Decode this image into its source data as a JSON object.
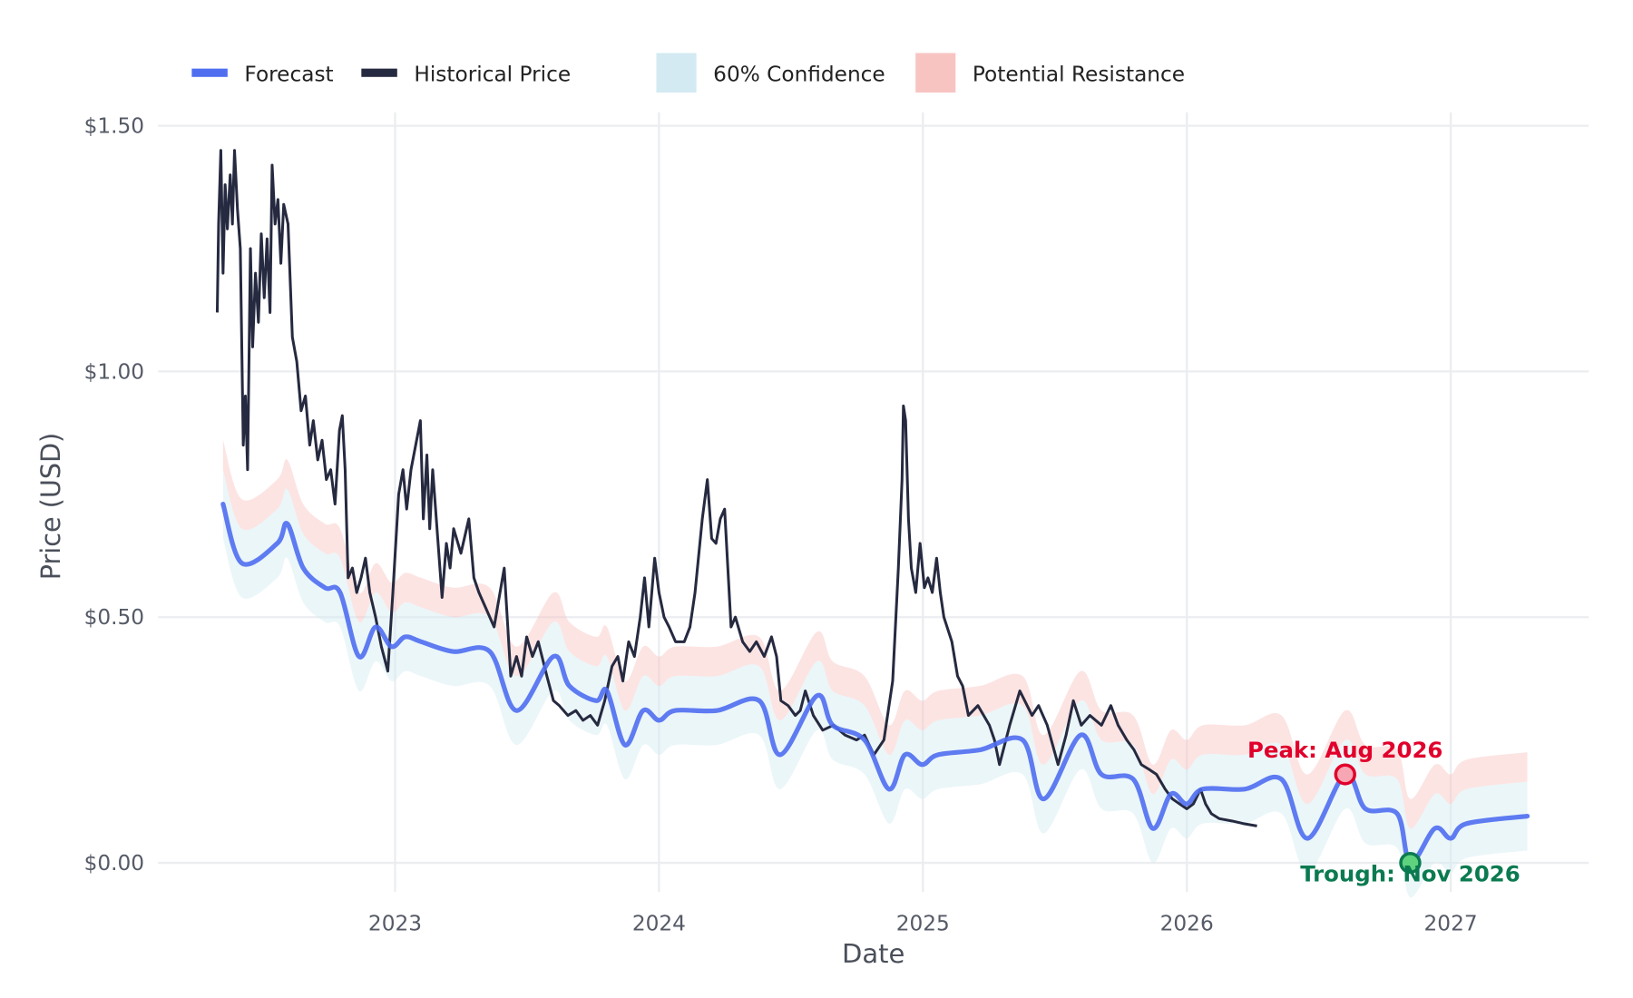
{
  "chart_data": {
    "type": "line",
    "title": "",
    "xlabel": "Date",
    "ylabel": "Price (USD)",
    "ylim": [
      -0.07,
      1.55
    ],
    "xlim": [
      "2022-02-01",
      "2027-07-15"
    ],
    "grid": true,
    "legend_placement": "top-left",
    "x_ticks": [
      "2023",
      "2024",
      "2025",
      "2026",
      "2027"
    ],
    "y_ticks": [
      {
        "value": 0,
        "label": "$0.00"
      },
      {
        "value": 0.5,
        "label": "$0.50"
      },
      {
        "value": 1.0,
        "label": "$1.00"
      },
      {
        "value": 1.5,
        "label": "$1.50"
      }
    ],
    "colors": {
      "forecast": "#4f6ef0",
      "historical": "#262a40",
      "confidence": "#d3eaf2",
      "resistance": "#f8c4c2",
      "peak": "#e0002b",
      "trough": "#0b7a50",
      "grid": "#ebedf0"
    },
    "legend": [
      {
        "key": "forecast",
        "label": "Forecast",
        "kind": "line"
      },
      {
        "key": "historical",
        "label": "Historical Price",
        "kind": "line"
      },
      {
        "key": "confidence",
        "label": "60% Confidence",
        "kind": "patch"
      },
      {
        "key": "resistance",
        "label": "Potential Resistance",
        "kind": "patch"
      }
    ],
    "bands": {
      "confidence_halfwidth": 0.07,
      "resistance_from": 0.07,
      "resistance_to": 0.13
    },
    "series": [
      {
        "name": "Historical Price",
        "points": [
          [
            "2022-04-30",
            1.12
          ],
          [
            "2022-05-02",
            1.3
          ],
          [
            "2022-05-05",
            1.45
          ],
          [
            "2022-05-08",
            1.2
          ],
          [
            "2022-05-11",
            1.38
          ],
          [
            "2022-05-14",
            1.29
          ],
          [
            "2022-05-18",
            1.4
          ],
          [
            "2022-05-21",
            1.3
          ],
          [
            "2022-05-24",
            1.45
          ],
          [
            "2022-05-28",
            1.33
          ],
          [
            "2022-06-01",
            1.25
          ],
          [
            "2022-06-05",
            0.85
          ],
          [
            "2022-06-08",
            0.95
          ],
          [
            "2022-06-11",
            0.8
          ],
          [
            "2022-06-15",
            1.25
          ],
          [
            "2022-06-18",
            1.05
          ],
          [
            "2022-06-22",
            1.2
          ],
          [
            "2022-06-26",
            1.1
          ],
          [
            "2022-06-30",
            1.28
          ],
          [
            "2022-07-04",
            1.15
          ],
          [
            "2022-07-08",
            1.27
          ],
          [
            "2022-07-12",
            1.12
          ],
          [
            "2022-07-15",
            1.42
          ],
          [
            "2022-07-19",
            1.3
          ],
          [
            "2022-07-23",
            1.35
          ],
          [
            "2022-07-27",
            1.22
          ],
          [
            "2022-07-31",
            1.34
          ],
          [
            "2022-08-06",
            1.3
          ],
          [
            "2022-08-12",
            1.07
          ],
          [
            "2022-08-18",
            1.02
          ],
          [
            "2022-08-24",
            0.92
          ],
          [
            "2022-08-30",
            0.95
          ],
          [
            "2022-09-05",
            0.85
          ],
          [
            "2022-09-10",
            0.9
          ],
          [
            "2022-09-16",
            0.82
          ],
          [
            "2022-09-22",
            0.86
          ],
          [
            "2022-09-28",
            0.78
          ],
          [
            "2022-10-04",
            0.8
          ],
          [
            "2022-10-10",
            0.73
          ],
          [
            "2022-10-16",
            0.88
          ],
          [
            "2022-10-20",
            0.91
          ],
          [
            "2022-10-24",
            0.8
          ],
          [
            "2022-10-28",
            0.58
          ],
          [
            "2022-11-03",
            0.6
          ],
          [
            "2022-11-09",
            0.55
          ],
          [
            "2022-11-15",
            0.58
          ],
          [
            "2022-11-21",
            0.62
          ],
          [
            "2022-11-27",
            0.55
          ],
          [
            "2022-12-05",
            0.5
          ],
          [
            "2022-12-13",
            0.44
          ],
          [
            "2022-12-22",
            0.39
          ],
          [
            "2022-12-29",
            0.55
          ],
          [
            "2023-01-06",
            0.75
          ],
          [
            "2023-01-12",
            0.8
          ],
          [
            "2023-01-17",
            0.72
          ],
          [
            "2023-01-23",
            0.8
          ],
          [
            "2023-02-05",
            0.9
          ],
          [
            "2023-02-09",
            0.7
          ],
          [
            "2023-02-14",
            0.83
          ],
          [
            "2023-02-18",
            0.68
          ],
          [
            "2023-02-22",
            0.8
          ],
          [
            "2023-03-07",
            0.54
          ],
          [
            "2023-03-13",
            0.65
          ],
          [
            "2023-03-18",
            0.6
          ],
          [
            "2023-03-23",
            0.68
          ],
          [
            "2023-04-02",
            0.63
          ],
          [
            "2023-04-13",
            0.7
          ],
          [
            "2023-04-20",
            0.58
          ],
          [
            "2023-04-27",
            0.55
          ],
          [
            "2023-05-06",
            0.52
          ],
          [
            "2023-05-18",
            0.48
          ],
          [
            "2023-06-01",
            0.6
          ],
          [
            "2023-06-10",
            0.38
          ],
          [
            "2023-06-18",
            0.42
          ],
          [
            "2023-06-25",
            0.38
          ],
          [
            "2023-07-02",
            0.46
          ],
          [
            "2023-07-10",
            0.42
          ],
          [
            "2023-07-18",
            0.45
          ],
          [
            "2023-07-30",
            0.38
          ],
          [
            "2023-08-08",
            0.33
          ],
          [
            "2023-08-16",
            0.32
          ],
          [
            "2023-08-28",
            0.3
          ],
          [
            "2023-09-08",
            0.31
          ],
          [
            "2023-09-18",
            0.29
          ],
          [
            "2023-09-28",
            0.3
          ],
          [
            "2023-10-08",
            0.28
          ],
          [
            "2023-10-18",
            0.33
          ],
          [
            "2023-10-28",
            0.4
          ],
          [
            "2023-11-05",
            0.42
          ],
          [
            "2023-11-12",
            0.37
          ],
          [
            "2023-11-20",
            0.45
          ],
          [
            "2023-11-28",
            0.42
          ],
          [
            "2023-12-06",
            0.5
          ],
          [
            "2023-12-12",
            0.58
          ],
          [
            "2023-12-18",
            0.48
          ],
          [
            "2023-12-26",
            0.62
          ],
          [
            "2024-01-01",
            0.55
          ],
          [
            "2024-01-08",
            0.5
          ],
          [
            "2024-01-15",
            0.48
          ],
          [
            "2024-01-24",
            0.45
          ],
          [
            "2024-02-05",
            0.45
          ],
          [
            "2024-02-13",
            0.48
          ],
          [
            "2024-02-20",
            0.55
          ],
          [
            "2024-03-01",
            0.7
          ],
          [
            "2024-03-08",
            0.78
          ],
          [
            "2024-03-14",
            0.66
          ],
          [
            "2024-03-20",
            0.65
          ],
          [
            "2024-03-26",
            0.7
          ],
          [
            "2024-04-01",
            0.72
          ],
          [
            "2024-04-10",
            0.48
          ],
          [
            "2024-04-16",
            0.5
          ],
          [
            "2024-04-26",
            0.45
          ],
          [
            "2024-05-06",
            0.43
          ],
          [
            "2024-05-15",
            0.45
          ],
          [
            "2024-05-26",
            0.42
          ],
          [
            "2024-06-05",
            0.46
          ],
          [
            "2024-06-12",
            0.42
          ],
          [
            "2024-06-18",
            0.33
          ],
          [
            "2024-06-28",
            0.32
          ],
          [
            "2024-07-08",
            0.3
          ],
          [
            "2024-07-15",
            0.31
          ],
          [
            "2024-07-22",
            0.35
          ],
          [
            "2024-08-02",
            0.3
          ],
          [
            "2024-08-15",
            0.27
          ],
          [
            "2024-08-30",
            0.28
          ],
          [
            "2024-09-15",
            0.26
          ],
          [
            "2024-10-01",
            0.25
          ],
          [
            "2024-10-12",
            0.26
          ],
          [
            "2024-10-25",
            0.22
          ],
          [
            "2024-11-08",
            0.25
          ],
          [
            "2024-11-20",
            0.37
          ],
          [
            "2024-11-28",
            0.6
          ],
          [
            "2024-12-03",
            0.78
          ],
          [
            "2024-12-05",
            0.93
          ],
          [
            "2024-12-08",
            0.9
          ],
          [
            "2024-12-12",
            0.7
          ],
          [
            "2024-12-16",
            0.6
          ],
          [
            "2024-12-22",
            0.55
          ],
          [
            "2024-12-28",
            0.65
          ],
          [
            "2025-01-03",
            0.56
          ],
          [
            "2025-01-08",
            0.58
          ],
          [
            "2025-01-14",
            0.55
          ],
          [
            "2025-01-20",
            0.62
          ],
          [
            "2025-01-25",
            0.55
          ],
          [
            "2025-01-30",
            0.5
          ],
          [
            "2025-02-10",
            0.45
          ],
          [
            "2025-02-18",
            0.38
          ],
          [
            "2025-02-25",
            0.36
          ],
          [
            "2025-03-05",
            0.3
          ],
          [
            "2025-03-18",
            0.32
          ],
          [
            "2025-04-03",
            0.28
          ],
          [
            "2025-04-10",
            0.25
          ],
          [
            "2025-04-17",
            0.2
          ],
          [
            "2025-05-01",
            0.28
          ],
          [
            "2025-05-15",
            0.35
          ],
          [
            "2025-06-01",
            0.3
          ],
          [
            "2025-06-10",
            0.32
          ],
          [
            "2025-06-22",
            0.28
          ],
          [
            "2025-07-07",
            0.2
          ],
          [
            "2025-07-18",
            0.26
          ],
          [
            "2025-07-28",
            0.33
          ],
          [
            "2025-08-08",
            0.28
          ],
          [
            "2025-08-20",
            0.3
          ],
          [
            "2025-09-05",
            0.28
          ],
          [
            "2025-09-18",
            0.32
          ],
          [
            "2025-09-28",
            0.28
          ],
          [
            "2025-10-10",
            0.25
          ],
          [
            "2025-10-20",
            0.23
          ],
          [
            "2025-10-30",
            0.2
          ],
          [
            "2025-11-10",
            0.19
          ],
          [
            "2025-11-20",
            0.18
          ],
          [
            "2025-12-02",
            0.15
          ],
          [
            "2025-12-12",
            0.13
          ],
          [
            "2025-12-22",
            0.12
          ],
          [
            "2026-01-01",
            0.11
          ],
          [
            "2026-01-10",
            0.12
          ],
          [
            "2026-01-20",
            0.15
          ],
          [
            "2026-01-27",
            0.12
          ],
          [
            "2026-02-04",
            0.1
          ],
          [
            "2026-02-15",
            0.09
          ],
          [
            "2026-03-05",
            0.085
          ],
          [
            "2026-03-20",
            0.08
          ],
          [
            "2026-04-08",
            0.075
          ]
        ]
      },
      {
        "name": "Forecast",
        "points": [
          [
            "2022-05-08",
            0.73
          ],
          [
            "2022-06-03",
            0.61
          ],
          [
            "2022-07-22",
            0.65
          ],
          [
            "2022-08-05",
            0.69
          ],
          [
            "2022-08-27",
            0.6
          ],
          [
            "2022-09-26",
            0.56
          ],
          [
            "2022-10-17",
            0.55
          ],
          [
            "2022-11-12",
            0.42
          ],
          [
            "2022-12-05",
            0.48
          ],
          [
            "2022-12-27",
            0.44
          ],
          [
            "2023-01-15",
            0.46
          ],
          [
            "2023-02-06",
            0.45
          ],
          [
            "2023-03-22",
            0.43
          ],
          [
            "2023-05-12",
            0.43
          ],
          [
            "2023-06-18",
            0.31
          ],
          [
            "2023-08-08",
            0.42
          ],
          [
            "2023-08-30",
            0.36
          ],
          [
            "2023-10-06",
            0.33
          ],
          [
            "2023-10-21",
            0.35
          ],
          [
            "2023-11-15",
            0.24
          ],
          [
            "2023-12-10",
            0.31
          ],
          [
            "2024-01-01",
            0.29
          ],
          [
            "2024-01-23",
            0.31
          ],
          [
            "2024-03-21",
            0.31
          ],
          [
            "2024-05-19",
            0.33
          ],
          [
            "2024-06-17",
            0.22
          ],
          [
            "2024-08-07",
            0.34
          ],
          [
            "2024-08-29",
            0.28
          ],
          [
            "2024-10-12",
            0.25
          ],
          [
            "2024-11-15",
            0.15
          ],
          [
            "2024-12-07",
            0.22
          ],
          [
            "2024-12-31",
            0.2
          ],
          [
            "2025-01-22",
            0.22
          ],
          [
            "2025-03-21",
            0.23
          ],
          [
            "2025-05-19",
            0.25
          ],
          [
            "2025-06-17",
            0.13
          ],
          [
            "2025-08-07",
            0.26
          ],
          [
            "2025-09-05",
            0.18
          ],
          [
            "2025-10-19",
            0.17
          ],
          [
            "2025-11-15",
            0.07
          ],
          [
            "2025-12-10",
            0.14
          ],
          [
            "2026-01-01",
            0.12
          ],
          [
            "2026-01-23",
            0.15
          ],
          [
            "2026-03-22",
            0.15
          ],
          [
            "2026-05-12",
            0.17
          ],
          [
            "2026-06-17",
            0.05
          ],
          [
            "2026-08-08",
            0.18
          ],
          [
            "2026-09-05",
            0.11
          ],
          [
            "2026-10-19",
            0.1
          ],
          [
            "2026-11-06",
            0.0
          ],
          [
            "2026-12-10",
            0.07
          ],
          [
            "2027-01-01",
            0.05
          ],
          [
            "2027-01-23",
            0.08
          ],
          [
            "2027-04-17",
            0.095
          ]
        ]
      }
    ],
    "annotations": [
      {
        "key": "peak",
        "label": "Peak: Aug 2026",
        "date": "2026-08-08",
        "value": 0.18
      },
      {
        "key": "trough",
        "label": "Trough: Nov 2026",
        "date": "2026-11-06",
        "value": 0.0
      }
    ]
  }
}
